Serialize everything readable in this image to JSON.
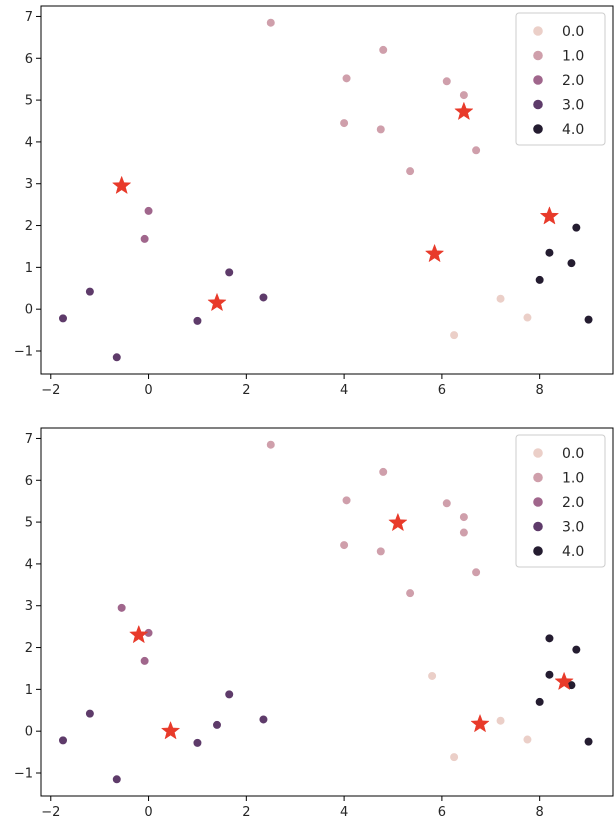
{
  "colors": {
    "hue": [
      "#ebcfc8",
      "#cf9fab",
      "#a0668c",
      "#5e3b6a",
      "#241c30"
    ],
    "centroid": "#e83a2a",
    "axes": "#000000"
  },
  "chart_data": [
    {
      "type": "scatter",
      "title": "",
      "xlabel": "",
      "ylabel": "",
      "xlim": [
        -2.2,
        9.5
      ],
      "ylim": [
        -1.55,
        7.25
      ],
      "xticks": [
        -2,
        0,
        2,
        4,
        6,
        8
      ],
      "yticks": [
        -1,
        0,
        1,
        2,
        3,
        4,
        5,
        6,
        7
      ],
      "xtick_labels": [
        "−2",
        "0",
        "2",
        "4",
        "6",
        "8"
      ],
      "ytick_labels": [
        "−1",
        "0",
        "1",
        "2",
        "3",
        "4",
        "5",
        "6",
        "7"
      ],
      "legend": {
        "location": "top-right",
        "entries": [
          "0.0",
          "1.0",
          "2.0",
          "3.0",
          "4.0"
        ]
      },
      "points": [
        {
          "x": 7.2,
          "y": 0.25,
          "hue": 0
        },
        {
          "x": 7.75,
          "y": -0.2,
          "hue": 0
        },
        {
          "x": 6.25,
          "y": -0.62,
          "hue": 0
        },
        {
          "x": 2.5,
          "y": 6.85,
          "hue": 1
        },
        {
          "x": 4.8,
          "y": 6.2,
          "hue": 1
        },
        {
          "x": 4.05,
          "y": 5.52,
          "hue": 1
        },
        {
          "x": 6.1,
          "y": 5.45,
          "hue": 1
        },
        {
          "x": 6.45,
          "y": 5.12,
          "hue": 1
        },
        {
          "x": 4.0,
          "y": 4.45,
          "hue": 1
        },
        {
          "x": 4.75,
          "y": 4.3,
          "hue": 1
        },
        {
          "x": 6.7,
          "y": 3.8,
          "hue": 1
        },
        {
          "x": 5.35,
          "y": 3.3,
          "hue": 1
        },
        {
          "x": 0.0,
          "y": 2.35,
          "hue": 2
        },
        {
          "x": -0.08,
          "y": 1.68,
          "hue": 2
        },
        {
          "x": -1.2,
          "y": 0.42,
          "hue": 3
        },
        {
          "x": -1.75,
          "y": -0.22,
          "hue": 3
        },
        {
          "x": -0.65,
          "y": -1.15,
          "hue": 3
        },
        {
          "x": 1.65,
          "y": 0.88,
          "hue": 3
        },
        {
          "x": 1.0,
          "y": -0.28,
          "hue": 3
        },
        {
          "x": 2.35,
          "y": 0.28,
          "hue": 3
        },
        {
          "x": 8.75,
          "y": 1.95,
          "hue": 4
        },
        {
          "x": 8.2,
          "y": 1.35,
          "hue": 4
        },
        {
          "x": 8.65,
          "y": 1.1,
          "hue": 4
        },
        {
          "x": 8.0,
          "y": 0.7,
          "hue": 4
        },
        {
          "x": 9.0,
          "y": -0.25,
          "hue": 4
        }
      ],
      "centroids": [
        {
          "x": -0.55,
          "y": 2.95
        },
        {
          "x": 1.4,
          "y": 0.15
        },
        {
          "x": 5.85,
          "y": 1.32
        },
        {
          "x": 6.45,
          "y": 4.72
        },
        {
          "x": 8.2,
          "y": 2.22
        }
      ]
    },
    {
      "type": "scatter",
      "title": "",
      "xlabel": "",
      "ylabel": "",
      "xlim": [
        -2.2,
        9.5
      ],
      "ylim": [
        -1.55,
        7.25
      ],
      "xticks": [
        -2,
        0,
        2,
        4,
        6,
        8
      ],
      "yticks": [
        -1,
        0,
        1,
        2,
        3,
        4,
        5,
        6,
        7
      ],
      "xtick_labels": [
        "−2",
        "0",
        "2",
        "4",
        "6",
        "8"
      ],
      "ytick_labels": [
        "−1",
        "0",
        "1",
        "2",
        "3",
        "4",
        "5",
        "6",
        "7"
      ],
      "legend": {
        "location": "top-right",
        "entries": [
          "0.0",
          "1.0",
          "2.0",
          "3.0",
          "4.0"
        ]
      },
      "points": [
        {
          "x": 5.8,
          "y": 1.32,
          "hue": 0
        },
        {
          "x": 7.2,
          "y": 0.25,
          "hue": 0
        },
        {
          "x": 7.75,
          "y": -0.2,
          "hue": 0
        },
        {
          "x": 6.25,
          "y": -0.62,
          "hue": 0
        },
        {
          "x": 2.5,
          "y": 6.85,
          "hue": 1
        },
        {
          "x": 4.8,
          "y": 6.2,
          "hue": 1
        },
        {
          "x": 4.05,
          "y": 5.52,
          "hue": 1
        },
        {
          "x": 6.1,
          "y": 5.45,
          "hue": 1
        },
        {
          "x": 6.45,
          "y": 5.12,
          "hue": 1
        },
        {
          "x": 6.45,
          "y": 4.75,
          "hue": 1
        },
        {
          "x": 4.0,
          "y": 4.45,
          "hue": 1
        },
        {
          "x": 4.75,
          "y": 4.3,
          "hue": 1
        },
        {
          "x": 6.7,
          "y": 3.8,
          "hue": 1
        },
        {
          "x": 5.35,
          "y": 3.3,
          "hue": 1
        },
        {
          "x": -0.55,
          "y": 2.95,
          "hue": 2
        },
        {
          "x": 0.0,
          "y": 2.35,
          "hue": 2
        },
        {
          "x": -0.08,
          "y": 1.68,
          "hue": 2
        },
        {
          "x": -1.2,
          "y": 0.42,
          "hue": 3
        },
        {
          "x": -1.75,
          "y": -0.22,
          "hue": 3
        },
        {
          "x": -0.65,
          "y": -1.15,
          "hue": 3
        },
        {
          "x": 1.65,
          "y": 0.88,
          "hue": 3
        },
        {
          "x": 1.4,
          "y": 0.15,
          "hue": 3
        },
        {
          "x": 1.0,
          "y": -0.28,
          "hue": 3
        },
        {
          "x": 2.35,
          "y": 0.28,
          "hue": 3
        },
        {
          "x": 8.2,
          "y": 2.22,
          "hue": 4
        },
        {
          "x": 8.75,
          "y": 1.95,
          "hue": 4
        },
        {
          "x": 8.2,
          "y": 1.35,
          "hue": 4
        },
        {
          "x": 8.65,
          "y": 1.1,
          "hue": 4
        },
        {
          "x": 8.0,
          "y": 0.7,
          "hue": 4
        },
        {
          "x": 9.0,
          "y": -0.25,
          "hue": 4
        }
      ],
      "centroids": [
        {
          "x": -0.2,
          "y": 2.3
        },
        {
          "x": 0.45,
          "y": 0.0
        },
        {
          "x": 5.1,
          "y": 4.98
        },
        {
          "x": 6.78,
          "y": 0.17
        },
        {
          "x": 8.5,
          "y": 1.18
        }
      ]
    }
  ]
}
